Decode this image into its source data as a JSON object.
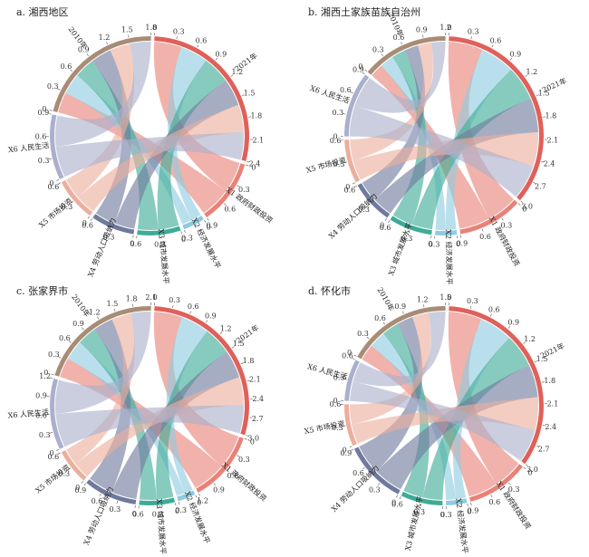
{
  "chart_data": [
    {
      "type": "chord",
      "panel": "a",
      "title": "a. 湘西地区",
      "groups": [
        {
          "key": "y2021",
          "label": "2021年",
          "value": 2.4,
          "color": "#e0605a",
          "side": "right"
        },
        {
          "key": "x1",
          "label": "X1 政府财政投资",
          "value": 0.9,
          "color": "#e88278",
          "side": "right"
        },
        {
          "key": "x2",
          "label": "X2 经济发展水平",
          "value": 0.3,
          "color": "#8fcbe0",
          "side": "right"
        },
        {
          "key": "x3",
          "label": "X3 城市发展水平",
          "value": 0.6,
          "color": "#3dab96",
          "side": "right"
        },
        {
          "key": "x4",
          "label": "X4 劳动人口吸纳力",
          "value": 0.6,
          "color": "#6f7a9c",
          "side": "left"
        },
        {
          "key": "x5",
          "label": "X5 市场投资",
          "value": 0.6,
          "color": "#ecae9c",
          "side": "left"
        },
        {
          "key": "x6",
          "label": "X6 人民生活",
          "value": 0.9,
          "color": "#aab0cc",
          "side": "left"
        },
        {
          "key": "y2010",
          "label": "2010年",
          "value": 1.8,
          "color": "#a88c76",
          "side": "left"
        }
      ],
      "group_values": [
        2.4,
        0.9,
        0.3,
        0.6,
        0.6,
        0.6,
        0.9,
        1.8
      ]
    },
    {
      "type": "chord",
      "panel": "b",
      "title": "b. 湘西土家族苗族自治州",
      "groups": [
        {
          "key": "y2021",
          "label": "2021年",
          "value": 3.0,
          "color": "#e0605a",
          "side": "right"
        },
        {
          "key": "x1",
          "label": "X1 政府财政投资",
          "value": 0.9,
          "color": "#e88278",
          "side": "right"
        },
        {
          "key": "x2",
          "label": "X2 经济发展水平",
          "value": 0.3,
          "color": "#8fcbe0",
          "side": "right"
        },
        {
          "key": "x3",
          "label": "X3 城市发展水平",
          "value": 0.6,
          "color": "#3dab96",
          "side": "right"
        },
        {
          "key": "x4",
          "label": "X4 劳动人口吸纳力",
          "value": 0.6,
          "color": "#6f7a9c",
          "side": "left"
        },
        {
          "key": "x5",
          "label": "X5 市场投资",
          "value": 0.6,
          "color": "#ecae9c",
          "side": "left"
        },
        {
          "key": "x6",
          "label": "X6 人民生活",
          "value": 0.9,
          "color": "#aab0cc",
          "side": "left"
        },
        {
          "key": "y2010",
          "label": "2010年",
          "value": 1.2,
          "color": "#a88c76",
          "side": "left"
        }
      ],
      "group_values": [
        3.0,
        0.9,
        0.3,
        0.6,
        0.6,
        0.6,
        0.9,
        1.2
      ]
    },
    {
      "type": "chord",
      "panel": "c",
      "title": "c. 张家界市",
      "groups": [
        {
          "key": "y2021",
          "label": "2021年",
          "value": 3.0,
          "color": "#e0605a",
          "side": "right"
        },
        {
          "key": "x1",
          "label": "X1 政府财政投资",
          "value": 1.2,
          "color": "#e88278",
          "side": "right"
        },
        {
          "key": "x2",
          "label": "X2 经济发展水平",
          "value": 0.3,
          "color": "#8fcbe0",
          "side": "right"
        },
        {
          "key": "x3",
          "label": "X3 城市发展水平",
          "value": 0.6,
          "color": "#3dab96",
          "side": "right"
        },
        {
          "key": "x4",
          "label": "X4 劳动人口吸纳力",
          "value": 0.9,
          "color": "#6f7a9c",
          "side": "left"
        },
        {
          "key": "x5",
          "label": "X5 市场投资",
          "value": 0.6,
          "color": "#ecae9c",
          "side": "left"
        },
        {
          "key": "x6",
          "label": "X6 人民生活",
          "value": 1.2,
          "color": "#aab0cc",
          "side": "left"
        },
        {
          "key": "y2010",
          "label": "2010年",
          "value": 2.1,
          "color": "#a88c76",
          "side": "left"
        }
      ],
      "group_values": [
        3.0,
        1.2,
        0.3,
        0.6,
        0.9,
        0.6,
        1.2,
        2.1
      ]
    },
    {
      "type": "chord",
      "panel": "d",
      "title": "d. 怀化市",
      "groups": [
        {
          "key": "y2021",
          "label": "2021年",
          "value": 3.0,
          "color": "#e0605a",
          "side": "right"
        },
        {
          "key": "x1",
          "label": "X1 政府财政投资",
          "value": 0.9,
          "color": "#e88278",
          "side": "right"
        },
        {
          "key": "x2",
          "label": "X2 经济发展水平",
          "value": 0.3,
          "color": "#8fcbe0",
          "side": "right"
        },
        {
          "key": "x3",
          "label": "X3 城市发展水平",
          "value": 0.6,
          "color": "#3dab96",
          "side": "right"
        },
        {
          "key": "x4",
          "label": "X4 劳动人口吸纳力",
          "value": 0.9,
          "color": "#6f7a9c",
          "side": "left"
        },
        {
          "key": "x5",
          "label": "X5 市场投资",
          "value": 0.6,
          "color": "#ecae9c",
          "side": "left"
        },
        {
          "key": "x6",
          "label": "X6 人民生活",
          "value": 0.6,
          "color": "#aab0cc",
          "side": "left"
        },
        {
          "key": "y2010",
          "label": "2010年",
          "value": 1.5,
          "color": "#a88c76",
          "side": "left"
        }
      ],
      "group_values": [
        3.0,
        0.9,
        0.3,
        0.6,
        0.9,
        0.6,
        0.6,
        1.5
      ]
    }
  ],
  "colors": {
    "y2021": "#e0605a",
    "x1": "#e88278",
    "x2": "#8fcbe0",
    "x3": "#3dab96",
    "x4": "#6f7a9c",
    "x5": "#ecae9c",
    "x6": "#aab0cc",
    "y2010": "#a88c76",
    "ribbon_a": "#b9ddd2",
    "ribbon_b": "#9da6c9"
  }
}
